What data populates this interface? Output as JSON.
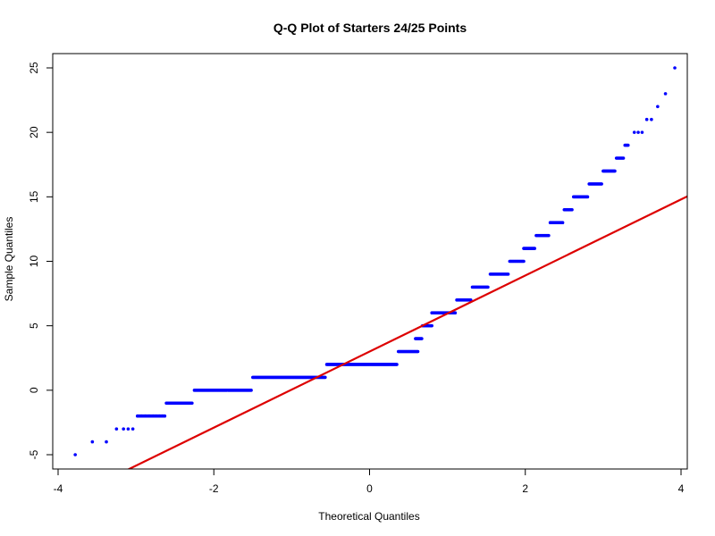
{
  "chart_data": {
    "type": "scatter",
    "title": "Q-Q Plot of Starters 24/25 Points",
    "xlabel": "Theoretical Quantiles",
    "ylabel": "Sample Quantiles",
    "xlim": [
      -4,
      4
    ],
    "ylim": [
      -5,
      25
    ],
    "x_ticks": [
      -4,
      -2,
      0,
      2,
      4
    ],
    "y_ticks": [
      -5,
      0,
      5,
      10,
      15,
      20,
      25
    ],
    "grid": false,
    "legend": "none",
    "point_color": "#0000ff",
    "line_color": "#dd0000",
    "reference_line": {
      "intercept": 3.0,
      "slope": 2.95
    },
    "points": [
      [
        -3.78,
        -5
      ],
      [
        -3.56,
        -4
      ],
      [
        -3.38,
        -4
      ],
      [
        -3.25,
        -3
      ],
      [
        -3.16,
        -3
      ],
      [
        -3.1,
        -3
      ],
      [
        -3.04,
        -3
      ],
      [
        -2.98,
        -2
      ],
      [
        -2.93,
        -2
      ],
      [
        -2.88,
        -2
      ],
      [
        -2.83,
        -2
      ],
      [
        -2.78,
        -2
      ],
      [
        -2.74,
        -2
      ],
      [
        -2.7,
        -2
      ],
      [
        -2.66,
        -2
      ]
    ],
    "point_runs": [
      {
        "y": -2,
        "x_from": -2.98,
        "x_to": -2.63
      },
      {
        "y": -1,
        "x_from": -2.61,
        "x_to": -2.28
      },
      {
        "y": 0,
        "x_from": -2.25,
        "x_to": -1.52
      },
      {
        "y": 1,
        "x_from": -1.5,
        "x_to": -0.57
      },
      {
        "y": 2,
        "x_from": -0.55,
        "x_to": 0.35
      },
      {
        "y": 3,
        "x_from": 0.37,
        "x_to": 0.62
      },
      {
        "y": 4,
        "x_from": 0.59,
        "x_to": 0.67
      },
      {
        "y": 5,
        "x_from": 0.68,
        "x_to": 0.8
      },
      {
        "y": 6,
        "x_from": 0.8,
        "x_to": 1.1
      },
      {
        "y": 7,
        "x_from": 1.12,
        "x_to": 1.3
      },
      {
        "y": 8,
        "x_from": 1.32,
        "x_to": 1.52
      },
      {
        "y": 9,
        "x_from": 1.55,
        "x_to": 1.78
      },
      {
        "y": 10,
        "x_from": 1.8,
        "x_to": 1.98
      },
      {
        "y": 11,
        "x_from": 1.98,
        "x_to": 2.12
      },
      {
        "y": 12,
        "x_from": 2.14,
        "x_to": 2.3
      },
      {
        "y": 13,
        "x_from": 2.32,
        "x_to": 2.48
      },
      {
        "y": 14,
        "x_from": 2.5,
        "x_to": 2.6
      },
      {
        "y": 15,
        "x_from": 2.62,
        "x_to": 2.8
      },
      {
        "y": 16,
        "x_from": 2.82,
        "x_to": 2.98
      },
      {
        "y": 17,
        "x_from": 3.0,
        "x_to": 3.15
      },
      {
        "y": 18,
        "x_from": 3.17,
        "x_to": 3.26
      },
      {
        "y": 19,
        "x_from": 3.28,
        "x_to": 3.32
      }
    ],
    "tail_points": [
      [
        3.4,
        20
      ],
      [
        3.45,
        20
      ],
      [
        3.5,
        20
      ],
      [
        3.56,
        21
      ],
      [
        3.62,
        21
      ],
      [
        3.7,
        22
      ],
      [
        3.8,
        23
      ],
      [
        3.92,
        25
      ]
    ]
  }
}
